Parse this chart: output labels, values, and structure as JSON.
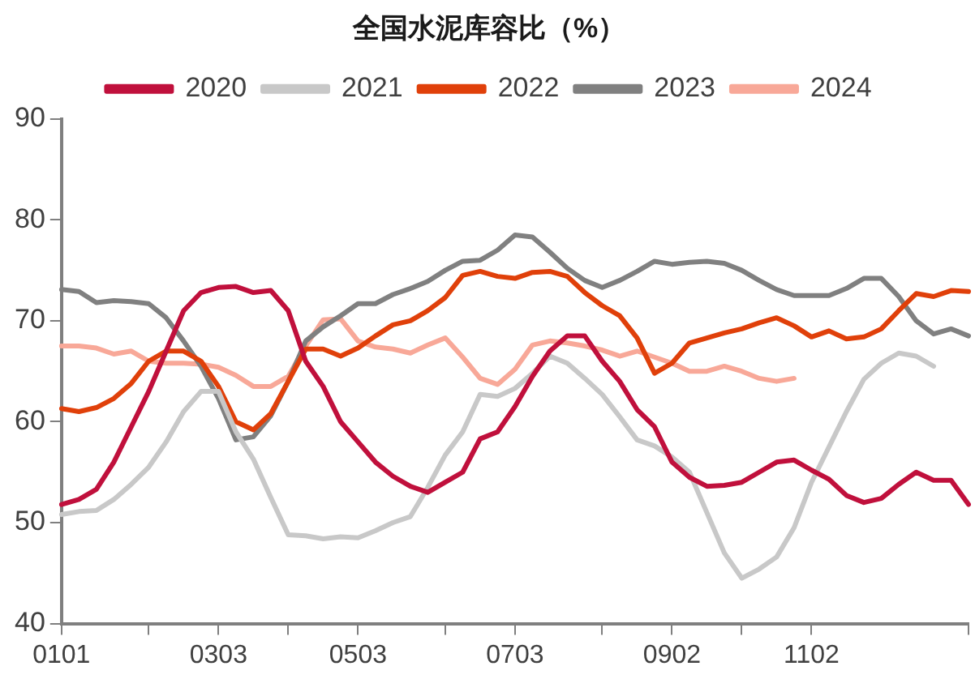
{
  "chart_data": {
    "type": "line",
    "title": "全国水泥库容比（%）",
    "categories": [
      "0101",
      null,
      null,
      null,
      null,
      null,
      null,
      null,
      null,
      "0303",
      null,
      null,
      null,
      null,
      null,
      null,
      null,
      "0503",
      null,
      null,
      null,
      null,
      null,
      null,
      null,
      null,
      "0703",
      null,
      null,
      null,
      null,
      null,
      null,
      null,
      null,
      "0902",
      null,
      null,
      null,
      null,
      null,
      null,
      null,
      "1102",
      null,
      null,
      null,
      null,
      null,
      null,
      null,
      null,
      null
    ],
    "ylim": [
      40,
      90
    ],
    "yticks": [
      40,
      50,
      60,
      70,
      80,
      90
    ],
    "grid": false,
    "legend": "top",
    "marker": "none",
    "line_style": "solid",
    "series": [
      {
        "name": "2020",
        "color": "#c0103c",
        "values": [
          51.8,
          52.3,
          53.3,
          56,
          59.5,
          63,
          67,
          71,
          72.8,
          73.3,
          73.4,
          72.8,
          73,
          71,
          66,
          63.5,
          60,
          58,
          56,
          54.6,
          53.6,
          53,
          54,
          55,
          58.3,
          59,
          61.5,
          64.5,
          67,
          68.5,
          68.5,
          66,
          64,
          61.2,
          59.5,
          56,
          54.5,
          53.6,
          53.7,
          54,
          55,
          56,
          56.2,
          55.2,
          54.3,
          52.7,
          52,
          52.4,
          53.8,
          55,
          54.2,
          54.2,
          51.8
        ]
      },
      {
        "name": "2021",
        "color": "#c8c8c8",
        "values": [
          50.8,
          51.1,
          51.2,
          52.3,
          53.8,
          55.5,
          58,
          61,
          63,
          63,
          59,
          56.3,
          52.5,
          48.8,
          48.7,
          48.4,
          48.6,
          48.5,
          49.2,
          50,
          50.6,
          53.5,
          56.7,
          59,
          62.7,
          62.5,
          63.3,
          64.8,
          66.5,
          65.8,
          64.3,
          62.7,
          60.5,
          58.2,
          57.6,
          56.5,
          55,
          51,
          47,
          44.5,
          45.4,
          46.6,
          49.5,
          54,
          57.5,
          61,
          64.2,
          65.8,
          66.8,
          66.5,
          65.5,
          null,
          null
        ]
      },
      {
        "name": "2022",
        "color": "#e0400a",
        "values": [
          61.3,
          61,
          61.4,
          62.3,
          63.8,
          66,
          67,
          67,
          66,
          63.5,
          60,
          59.2,
          60.8,
          64,
          67.2,
          67.2,
          66.5,
          67.3,
          68.5,
          69.6,
          70,
          71,
          72.3,
          74.5,
          74.9,
          74.4,
          74.2,
          74.8,
          74.9,
          74.4,
          72.8,
          71.5,
          70.5,
          68.3,
          64.8,
          65.8,
          67.8,
          68.3,
          68.8,
          69.2,
          69.8,
          70.3,
          69.5,
          68.4,
          69,
          68.2,
          68.4,
          69.2,
          71,
          72.7,
          72.4,
          73,
          72.9
        ]
      },
      {
        "name": "2023",
        "color": "#808080",
        "values": [
          73.1,
          72.9,
          71.8,
          72,
          71.9,
          71.7,
          70.3,
          68,
          65.5,
          62.3,
          58.2,
          58.5,
          60.6,
          64,
          68,
          69.4,
          70.5,
          71.7,
          71.7,
          72.6,
          73.2,
          73.9,
          75,
          75.9,
          76,
          77,
          78.5,
          78.3,
          76.8,
          75.2,
          74,
          73.3,
          74,
          74.9,
          75.9,
          75.6,
          75.8,
          75.9,
          75.7,
          75,
          74,
          73.1,
          72.5,
          72.5,
          72.5,
          73.2,
          74.2,
          74.2,
          72.4,
          70,
          68.7,
          69.2,
          68.5
        ]
      },
      {
        "name": "2024",
        "color": "#f8a898",
        "values": [
          67.5,
          67.5,
          67.3,
          66.7,
          67,
          66,
          65.8,
          65.8,
          65.7,
          65.4,
          64.6,
          63.5,
          63.5,
          64.5,
          67.5,
          70.1,
          70.2,
          68,
          67.4,
          67.2,
          66.8,
          67.6,
          68.3,
          66.4,
          64.3,
          63.7,
          65.2,
          67.6,
          68,
          67.8,
          67.5,
          67.1,
          66.5,
          67,
          66.4,
          65.8,
          65,
          65,
          65.5,
          65,
          64.3,
          64,
          64.3,
          null,
          null,
          null,
          null,
          null,
          null,
          null,
          null,
          null,
          null
        ]
      }
    ]
  }
}
